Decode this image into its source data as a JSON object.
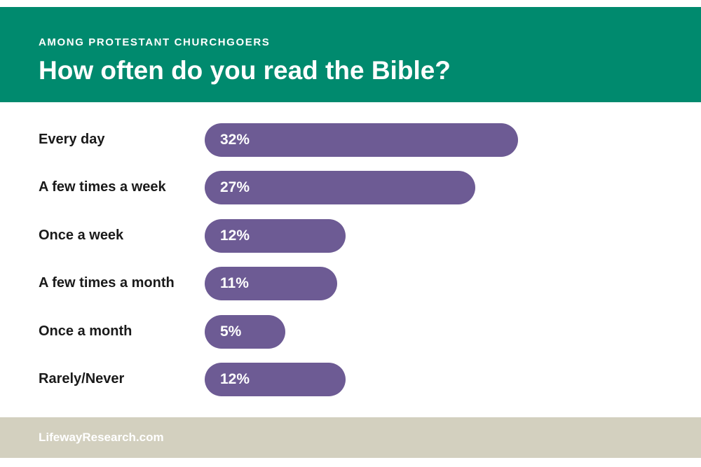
{
  "header": {
    "subtitle": "AMONG PROTESTANT CHURCHGOERS",
    "title": "How often do you read the Bible?"
  },
  "chart_data": {
    "type": "bar",
    "orientation": "horizontal",
    "title": "How often do you read the Bible?",
    "subtitle": "AMONG PROTESTANT CHURCHGOERS",
    "categories": [
      "Every day",
      "A few times a week",
      "Once a week",
      "A few times a month",
      "Once a month",
      "Rarely/Never"
    ],
    "values": [
      32,
      27,
      12,
      11,
      5,
      12
    ],
    "value_labels": [
      "32%",
      "27%",
      "12%",
      "11%",
      "5%",
      "12%"
    ],
    "unit": "%",
    "bar_color": "#6d5b94",
    "grid": false,
    "legend": "none"
  },
  "footer": {
    "source": "LifewayResearch.com"
  },
  "colors": {
    "header_bg": "#008a6e",
    "bar": "#6d5b94",
    "footer_bg": "#d3d0bf"
  }
}
